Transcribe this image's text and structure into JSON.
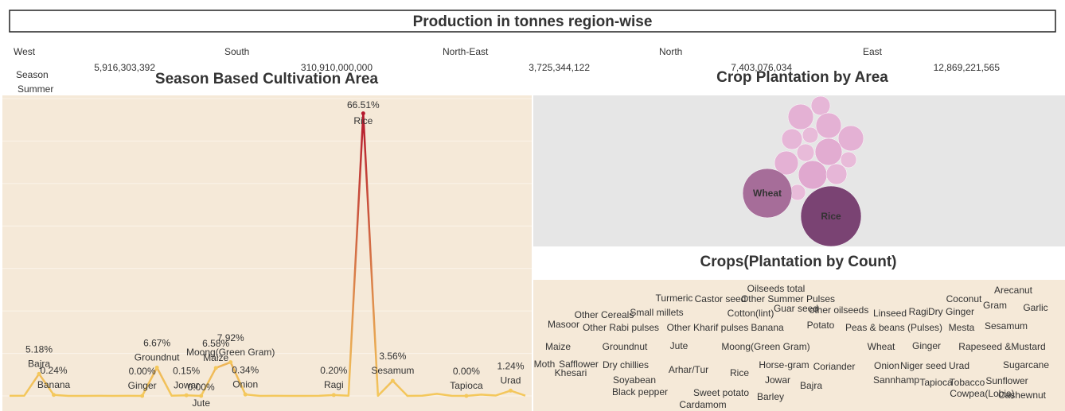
{
  "title": "Production in tonnes region-wise",
  "chart_data": [
    {
      "type": "text-table",
      "categories": [
        "West",
        "South",
        "North-East",
        "North",
        "East"
      ],
      "values": [
        5916303392,
        310910000000,
        3725344122,
        7403076034,
        12869221565
      ],
      "value_labels": [
        "5,916,303,392",
        "310,910,000,000",
        "3,725,344,122",
        "7,403,076,034",
        "12,869,221,565"
      ]
    },
    {
      "type": "line",
      "title": "Season Based Cultivation Area",
      "filter": {
        "label": "Season",
        "value": "Summer"
      },
      "categories": [
        null,
        null,
        "Bajra",
        "Banana",
        null,
        null,
        null,
        null,
        null,
        "Ginger",
        "Groundnut",
        null,
        "Jowar",
        "Jute",
        "Maize",
        "Moong(Green Gram)",
        "Onion",
        null,
        null,
        null,
        null,
        null,
        "Ragi",
        null,
        "Rice",
        null,
        "Sesamum",
        null,
        null,
        null,
        null,
        "Tapioca",
        null,
        null,
        "Urad",
        null
      ],
      "values": [
        0.02,
        0.05,
        5.18,
        0.24,
        0.01,
        0.01,
        0.02,
        0.01,
        0.03,
        0.0,
        6.67,
        0.05,
        0.15,
        0.0,
        6.58,
        7.92,
        0.34,
        0.01,
        0.02,
        0.01,
        0.01,
        0.02,
        0.2,
        0.05,
        66.51,
        0.02,
        3.56,
        0.01,
        0.05,
        0.5,
        0.02,
        0.0,
        0.3,
        0.1,
        1.24,
        0.05
      ],
      "value_labels": [
        null,
        null,
        "5.18%",
        "0.24%",
        null,
        null,
        null,
        null,
        null,
        "0.00%",
        "6.67%",
        null,
        "0.15%",
        "0.00%",
        "6.58%",
        "7.92%",
        "0.34%",
        null,
        null,
        null,
        null,
        null,
        "0.20%",
        null,
        "66.51%",
        null,
        "3.56%",
        null,
        null,
        null,
        null,
        "0.00%",
        null,
        null,
        "1.24%",
        null
      ],
      "ylim": [
        0,
        70
      ],
      "yticks": [
        0,
        10,
        20,
        30,
        40,
        50,
        60,
        70
      ],
      "grid": true,
      "color_low": "#f4c85c",
      "color_high": "#b5192e"
    },
    {
      "type": "bubble",
      "title": "Crop Plantation by Area",
      "categories": [
        null,
        null,
        null,
        null,
        null,
        null,
        null,
        null,
        null,
        null,
        null,
        null,
        null,
        "Wheat",
        "Rice"
      ],
      "values": [
        1.44,
        2.56,
        2.56,
        2.56,
        1.69,
        1.0,
        2.89,
        1.21,
        2.25,
        1.0,
        3.24,
        1.69,
        1.0,
        9.61,
        14.44
      ],
      "colors": [
        "#e6b6d7",
        "#e4b1d4",
        "#e4b1d4",
        "#e4b1d4",
        "#e6b6d7",
        "#e8bbd9",
        "#e2acd1",
        "#e8bbd9",
        "#e4b1d4",
        "#e8bbd9",
        "#e0a8cf",
        "#e6b6d7",
        "#e8bbd9",
        "#a66d99",
        "#7a4373"
      ]
    },
    {
      "type": "wordcloud",
      "title": "Crops(Plantation by Count)",
      "words": [
        "Oilseeds total",
        "Arecanut",
        "Turmeric",
        "Castor seed",
        "Other Summer Pulses",
        "Coconut",
        "Guar seed",
        "other oilseeds",
        "Gram",
        "Garlic",
        "Other Cereals",
        "Small millets",
        "Cotton(lint)",
        "Linseed",
        "Ragi",
        "Dry Ginger",
        "Masoor",
        "Other Rabi pulses",
        "Other Kharif pulses",
        "Banana",
        "Potato",
        "Peas & beans (Pulses)",
        "Mesta",
        "Sesamum",
        "Maize",
        "Groundnut",
        "Jute",
        "Moong(Green Gram)",
        "Wheat",
        "Ginger",
        "Rapeseed &Mustard",
        "Moth",
        "Safflower",
        "Dry chillies",
        "Horse-gram",
        "Coriander",
        "Onion",
        "Niger seed",
        "Urad",
        "Sugarcane",
        "Khesari",
        "Arhar/Tur",
        "Rice",
        "Jowar",
        "Bajra",
        "Sannhamp",
        "Tapioca",
        "Tobacco",
        "Sunflower",
        "Soyabean",
        "Black pepper",
        "Sweet potato",
        "Barley",
        "Cowpea(Lobia)",
        "Cashewnut",
        "Cardamom"
      ],
      "values": [
        8,
        7,
        12,
        11,
        7,
        9,
        7,
        7,
        14,
        12,
        7,
        13,
        13,
        12,
        12,
        7,
        12,
        11,
        11,
        11,
        15,
        12,
        7,
        18,
        22,
        17,
        7,
        18,
        17,
        10,
        16,
        7,
        7,
        15,
        12,
        12,
        16,
        8,
        18,
        15,
        7,
        16,
        22,
        16,
        13,
        7,
        7,
        7,
        13,
        12,
        7,
        12,
        11,
        7,
        7,
        7
      ],
      "colors": [
        "#e377c2",
        "#aec7e8",
        "#7f7f7f",
        "#c5b0d5",
        "#17becf",
        "#8c564b",
        "#1f77b4",
        "#bcbd22",
        "#17becf",
        "#bcbd22",
        "#8c564b",
        "#ff9896",
        "#e377c2",
        "#98df8a",
        "#9edae5",
        "#c7c7c7",
        "#ff9896",
        "#dbdb8d",
        "#c7c7c7",
        "#2ca02c",
        "#1f77b4",
        "#9edae5",
        "#9467bd",
        "#d62728",
        "#d62728",
        "#9edae5",
        "#ffbb78",
        "#c5b0d5",
        "#ff7f0e",
        "#dbdb8d",
        "#ff7f0e",
        "#8c564b",
        "#2ca02c",
        "#7f7f7f",
        "#9edae5",
        "#7f7f7f",
        "#ff9896",
        "#8c564b",
        "#c7c7c7",
        "#aec7e8",
        "#2ca02c",
        "#ff7f0e",
        "#1f77b4",
        "#ff7f0e",
        "#ffbb78",
        "#98df8a",
        "#e377c2",
        "#f7b6d2",
        "#7f7f7f",
        "#9467bd",
        "#d62728",
        "#c7c7c7",
        "#98df8a",
        "#f7b6d2",
        "#9467bd",
        "#ff9896"
      ]
    }
  ]
}
